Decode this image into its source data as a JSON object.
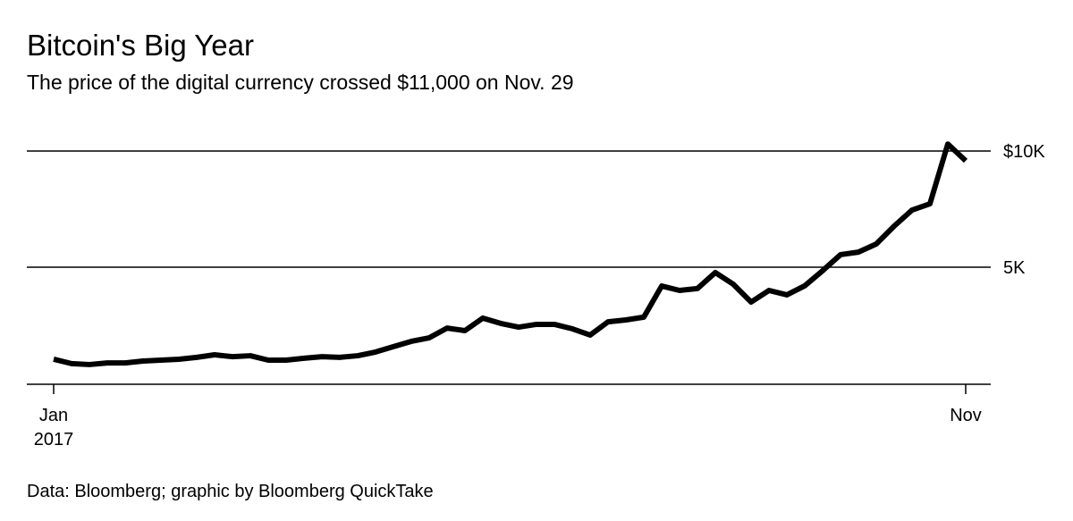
{
  "chart_data": {
    "type": "line",
    "title": "Bitcoin's Big Year",
    "subtitle": "The price of the digital currency crossed $11,000 on Nov. 29",
    "source": "Data: Bloomberg; graphic by Bloomberg QuickTake",
    "categories": [
      "Jan 2017",
      null,
      null,
      null,
      null,
      null,
      null,
      null,
      null,
      null,
      null,
      null,
      null,
      null,
      null,
      null,
      null,
      null,
      null,
      null,
      null,
      null,
      null,
      null,
      null,
      null,
      null,
      null,
      null,
      null,
      null,
      null,
      null,
      null,
      null,
      null,
      null,
      null,
      null,
      null,
      null,
      null,
      null,
      null,
      null,
      null,
      null,
      null,
      null,
      null,
      null,
      "Nov"
    ],
    "series": [
      {
        "color": "#000000",
        "values": [
          1040,
          850,
          810,
          880,
          880,
          960,
          1000,
          1040,
          1120,
          1230,
          1150,
          1190,
          1000,
          1000,
          1080,
          1150,
          1120,
          1190,
          1350,
          1580,
          1810,
          1960,
          2380,
          2270,
          2810,
          2580,
          2420,
          2540,
          2540,
          2350,
          2080,
          2650,
          2730,
          2850,
          4190,
          4000,
          4080,
          4770,
          4270,
          3500,
          4000,
          3810,
          4200,
          4850,
          5540,
          5650,
          6000,
          6770,
          7460,
          7730,
          10300,
          9580
        ]
      }
    ],
    "ylim": [
      0,
      11000
    ],
    "yticks": [
      {
        "value": 5000,
        "label": "5K"
      },
      {
        "value": 10000,
        "label": "$10K"
      }
    ],
    "grid": true
  }
}
